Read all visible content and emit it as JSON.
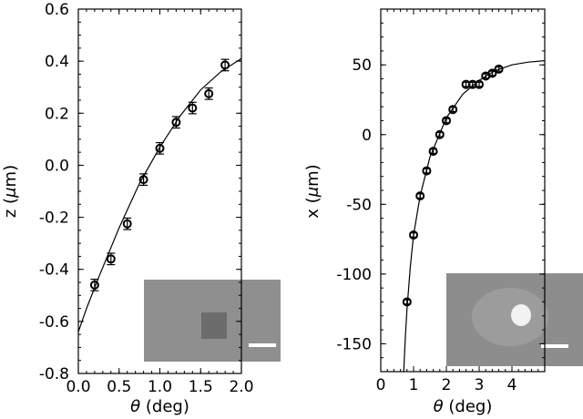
{
  "chart_data": [
    {
      "type": "scatter",
      "xlabel_symbol": "θ",
      "xlabel_rest": " (deg)",
      "ylabel_prefix": "z (",
      "ylabel_mu": "μ",
      "ylabel_suffix": "m)",
      "xlim": [
        0.0,
        2.0
      ],
      "ylim": [
        -0.8,
        0.6
      ],
      "xticks": [
        0.0,
        0.5,
        1.0,
        1.5,
        2.0
      ],
      "xtick_labels": [
        "0.0",
        "0.5",
        "1.0",
        "1.5",
        "2.0"
      ],
      "yticks": [
        -0.8,
        -0.6,
        -0.4,
        -0.2,
        0.0,
        0.2,
        0.4,
        0.6
      ],
      "ytick_labels": [
        "-0.8",
        "-0.6",
        "-0.4",
        "-0.2",
        "0.0",
        "0.2",
        "0.4",
        "0.6"
      ],
      "x_minor_step": 0.1,
      "y_minor_step": 0.05,
      "series": [
        {
          "x": [
            0.2,
            0.4,
            0.6,
            0.8,
            1.0,
            1.2,
            1.4,
            1.6,
            1.8
          ],
          "y": [
            -0.46,
            -0.36,
            -0.225,
            -0.055,
            0.065,
            0.165,
            0.22,
            0.275,
            0.385
          ],
          "yerr": 0.022,
          "xerr": 0.05
        }
      ],
      "fit": {
        "x": [
          0.0,
          0.1,
          0.25,
          0.5,
          0.75,
          1.0,
          1.25,
          1.5,
          1.75,
          2.0
        ],
        "y": [
          -0.64,
          -0.55,
          -0.43,
          -0.24,
          -0.07,
          0.07,
          0.19,
          0.29,
          0.36,
          0.41
        ]
      },
      "inset": {
        "background": "#8f8f8f",
        "feature": "#6c6c6c",
        "scalebar": "#ffffff"
      }
    },
    {
      "type": "scatter",
      "xlabel_symbol": "θ",
      "xlabel_rest": " (deg)",
      "ylabel_prefix": "x (",
      "ylabel_mu": "μ",
      "ylabel_suffix": "m)",
      "xlim": [
        0,
        5
      ],
      "ylim": [
        -170,
        90
      ],
      "xticks": [
        0,
        1,
        2,
        3,
        4
      ],
      "xtick_labels": [
        "0",
        "1",
        "2",
        "3",
        "4"
      ],
      "yticks": [
        -150,
        -100,
        -50,
        0,
        50
      ],
      "ytick_labels": [
        "-150",
        "-100",
        "-50",
        "0",
        "50"
      ],
      "x_minor_step": 0.2,
      "y_minor_step": 10,
      "series": [
        {
          "x": [
            0.8,
            1.0,
            1.2,
            1.4,
            1.6,
            1.8,
            2.0,
            2.2,
            2.6,
            2.8,
            3.0,
            3.2,
            3.4,
            3.6
          ],
          "y": [
            -120,
            -72,
            -44,
            -26,
            -12,
            0,
            10,
            18,
            36,
            36,
            36,
            42,
            44,
            47
          ],
          "yerr": 1.5,
          "xerr": 0.12
        }
      ],
      "fit": {
        "x": [
          0.7,
          0.75,
          0.8,
          0.9,
          1.0,
          1.2,
          1.5,
          2.0,
          2.5,
          3.0,
          3.5,
          4.0,
          4.5,
          5.0
        ],
        "y": [
          -170,
          -145,
          -125,
          -95,
          -72,
          -44,
          -16,
          12,
          29,
          39,
          46,
          50,
          52,
          53
        ]
      },
      "inset": {
        "background": "#8d8d8d",
        "feature": "#f2f2f2",
        "scalebar": "#ffffff"
      }
    }
  ]
}
